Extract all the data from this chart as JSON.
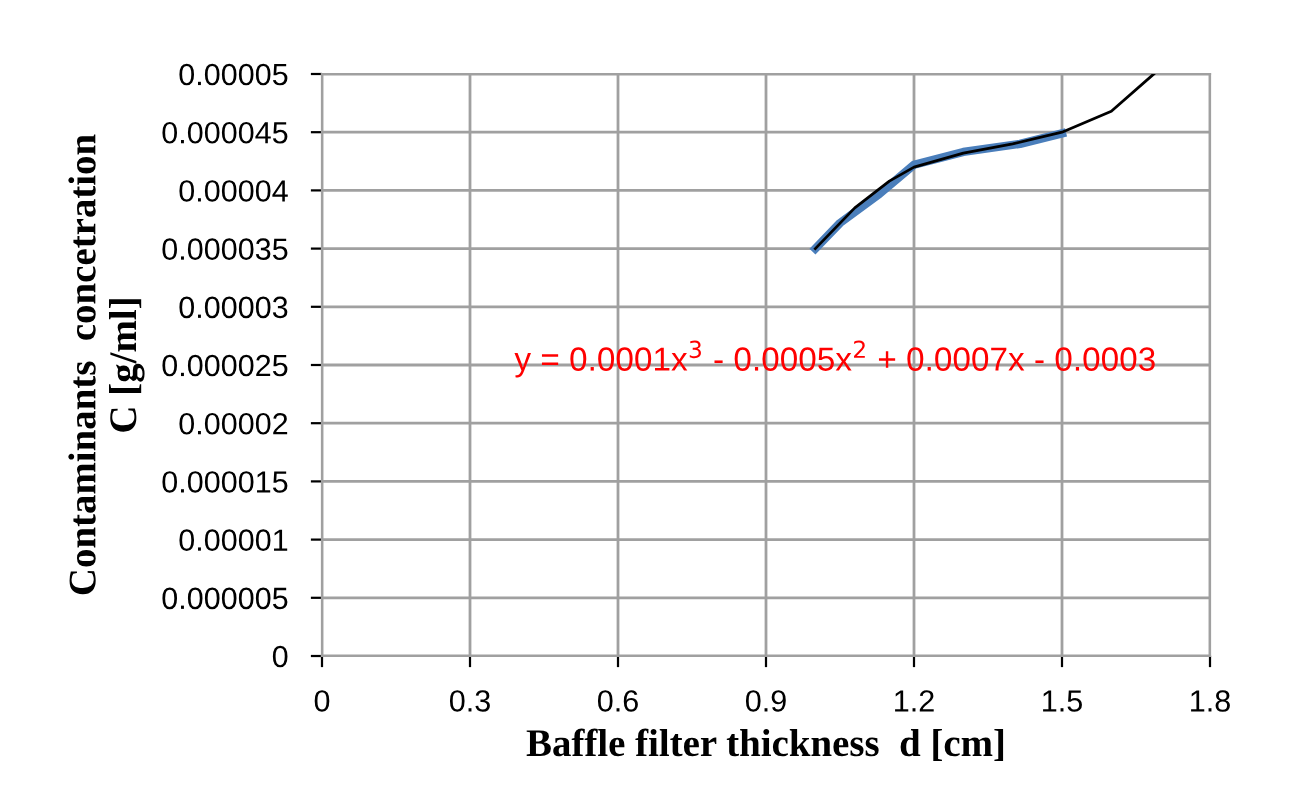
{
  "chart_data": {
    "type": "line",
    "xlabel": "Baffle filter thickness  d [cm]",
    "ylabel": "Contaminants  concetration\nC [g/ml]",
    "series": [
      {
        "color": "#4a7ebb",
        "x": [
          1.0,
          1.05,
          1.13,
          1.2,
          1.3,
          1.415,
          1.5
        ],
        "values": [
          3.5e-05,
          3.72e-05,
          3.97e-05,
          4.22e-05,
          4.33e-05,
          4.4e-05,
          4.49e-05
        ]
      },
      {
        "color": "#000000",
        "x": [
          1.0,
          1.08,
          1.15,
          1.2,
          1.3,
          1.4,
          1.5,
          1.6,
          1.686
        ],
        "values": [
          3.5e-05,
          3.85e-05,
          4.08e-05,
          4.2e-05,
          4.32e-05,
          4.4e-05,
          4.5e-05,
          4.68e-05,
          5e-05
        ]
      }
    ],
    "xlim": [
      0,
      1.8
    ],
    "xticks": [
      0,
      0.3,
      0.6,
      0.9,
      1.2,
      1.5,
      1.8
    ],
    "ylim": [
      0,
      5e-05
    ],
    "yticks": [
      {
        "value": 0,
        "label": "0"
      },
      {
        "value": 5e-06,
        "label": "0.000005"
      },
      {
        "value": 1e-05,
        "label": "0.00001"
      },
      {
        "value": 1.5e-05,
        "label": "0.000015"
      },
      {
        "value": 2e-05,
        "label": "0.00002"
      },
      {
        "value": 2.5e-05,
        "label": "0.000025"
      },
      {
        "value": 3e-05,
        "label": "0.00003"
      },
      {
        "value": 3.5e-05,
        "label": "0.000035"
      },
      {
        "value": 4e-05,
        "label": "0.00004"
      },
      {
        "value": 4.5e-05,
        "label": "0.000045"
      },
      {
        "value": 5e-05,
        "label": "0.00005"
      }
    ],
    "grid": true,
    "line_style": "solid",
    "marker": "none",
    "annotations": [
      "y = 0.0001x$^{3}$ - 0.0005x$^{2}$ + 0.0007x - 0.0003"
    ]
  }
}
